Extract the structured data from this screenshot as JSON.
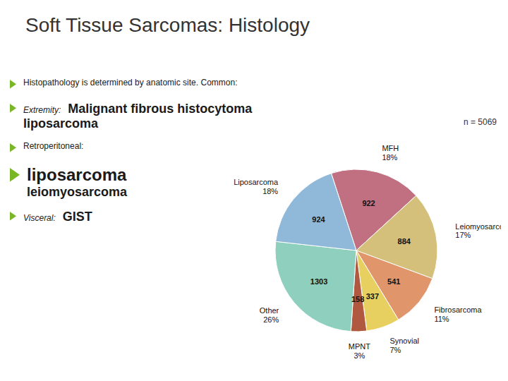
{
  "chart_data": {
    "type": "pie",
    "title": "Soft Tissue Sarcomas: Histology",
    "categories": [
      "MFH",
      "Leiomyosarcoma",
      "Fibrosarcoma",
      "Synovial",
      "MPNT",
      "Other",
      "Liposarcoma"
    ],
    "values": [
      922,
      884,
      541,
      337,
      158,
      1303,
      924
    ],
    "data_labels": true,
    "percentages": [
      {
        "value": 18,
        "label": "18%"
      },
      {
        "value": 17,
        "label": "17%"
      },
      {
        "value": 11,
        "label": "11%"
      },
      {
        "value": 7,
        "label": "7%"
      },
      {
        "value": 3,
        "label": "3%"
      },
      {
        "value": 26,
        "label": "26%"
      },
      {
        "value": 18,
        "label": "18%"
      }
    ],
    "colors": [
      "#c07080",
      "#d4c07a",
      "#e0956a",
      "#e8d060",
      "#b05840",
      "#8ecfbe",
      "#90b8d8"
    ],
    "n_label": "n = 5069",
    "annotations": [
      {
        "lead": "Histopathology is determined by anatomic site.   Common:"
      },
      {
        "lead": "Extremity:",
        "items": [
          "Malignant fibrous histocytoma",
          "liposarcoma"
        ]
      },
      {
        "lead": "Retroperitoneal:"
      },
      {
        "items": [
          "liposarcoma",
          "leiomyosarcoma"
        ]
      },
      {
        "lead": "Visceral:",
        "items": [
          "GIST"
        ]
      }
    ]
  }
}
